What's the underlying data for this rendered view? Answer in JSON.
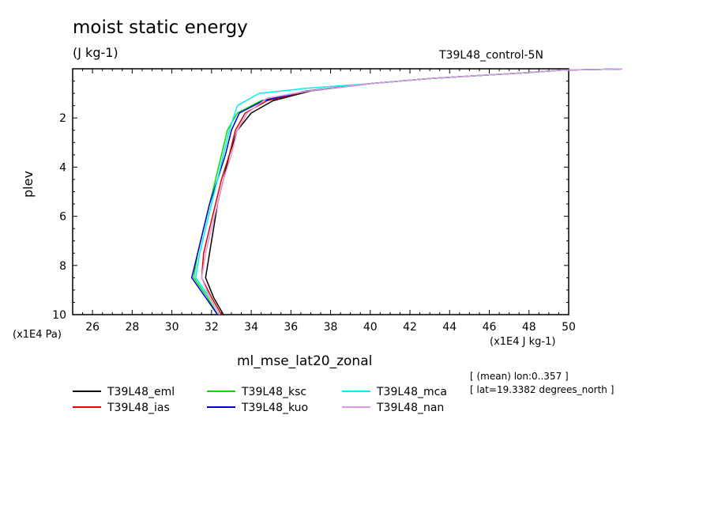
{
  "title": "moist static energy",
  "units": "(J kg-1)",
  "run_label": "T39L48_control-5N",
  "variable": "ml_mse_lat20_zonal",
  "info": [
    "[ (mean) lon:0..357 ]",
    "[ lat=19.3382 degrees_north ]"
  ],
  "chart_data": {
    "type": "line",
    "xlabel": "",
    "ylabel": "plev",
    "x_units": "(x1E4 J kg-1)",
    "y_units": "(x1E4 Pa)",
    "xlim": [
      25,
      50
    ],
    "ylim": [
      10,
      0
    ],
    "x_ticks": [
      "26",
      "28",
      "30",
      "32",
      "34",
      "36",
      "38",
      "40",
      "42",
      "44",
      "46",
      "48",
      "50"
    ],
    "y_ticks": [
      "2",
      "4",
      "6",
      "8",
      "10"
    ],
    "legend_position": "bottom",
    "series": [
      {
        "name": "T39L48_eml",
        "color": "#000000",
        "x": [
          32.6,
          32.1,
          31.7,
          31.9,
          32.1,
          32.3,
          32.6,
          32.9,
          33.3,
          34.0,
          35.1,
          37.0,
          40.0,
          43.0,
          46.0,
          48.0,
          49.7,
          52.7
        ],
        "y": [
          10,
          9.3,
          8.5,
          7.5,
          6.5,
          5.5,
          4.5,
          3.5,
          2.5,
          1.8,
          1.3,
          0.9,
          0.6,
          0.4,
          0.25,
          0.15,
          0.05,
          0.01
        ]
      },
      {
        "name": "T39L48_ias",
        "color": "#e00000",
        "x": [
          32.5,
          32.0,
          31.5,
          31.6,
          31.9,
          32.2,
          32.5,
          32.9,
          33.2,
          33.7,
          34.8,
          36.9,
          40.0,
          43.0,
          46.0,
          48.0,
          49.7,
          52.7
        ],
        "y": [
          10,
          9.3,
          8.5,
          7.5,
          6.5,
          5.5,
          4.5,
          3.5,
          2.5,
          1.8,
          1.3,
          0.9,
          0.6,
          0.4,
          0.25,
          0.15,
          0.05,
          0.01
        ]
      },
      {
        "name": "T39L48_ksc",
        "color": "#00dd00",
        "x": [
          32.3,
          31.8,
          31.1,
          31.3,
          31.6,
          31.9,
          32.2,
          32.5,
          32.8,
          33.3,
          34.5,
          36.8,
          40.0,
          43.0,
          46.0,
          48.0,
          49.7,
          52.7
        ],
        "y": [
          10,
          9.3,
          8.5,
          7.5,
          6.5,
          5.5,
          4.5,
          3.5,
          2.5,
          1.8,
          1.3,
          0.9,
          0.6,
          0.4,
          0.25,
          0.15,
          0.05,
          0.01
        ]
      },
      {
        "name": "T39L48_kuo",
        "color": "#0000cc",
        "x": [
          32.3,
          31.7,
          31.0,
          31.3,
          31.6,
          31.9,
          32.3,
          32.7,
          33.0,
          33.4,
          34.6,
          36.8,
          40.0,
          43.0,
          46.0,
          48.0,
          49.7,
          52.7
        ],
        "y": [
          10,
          9.3,
          8.5,
          7.5,
          6.5,
          5.5,
          4.5,
          3.5,
          2.5,
          1.8,
          1.3,
          0.9,
          0.6,
          0.4,
          0.25,
          0.15,
          0.05,
          0.01
        ]
      },
      {
        "name": "T39L48_mca",
        "color": "#00eeee",
        "x": [
          32.4,
          31.9,
          31.2,
          31.4,
          31.7,
          32.0,
          32.3,
          32.6,
          32.9,
          33.3,
          34.4,
          36.7,
          40.0,
          43.0,
          46.0,
          48.0,
          49.7,
          52.7
        ],
        "y": [
          10,
          9.3,
          8.5,
          7.5,
          6.5,
          5.5,
          4.5,
          3.5,
          2.5,
          1.5,
          1.0,
          0.8,
          0.6,
          0.4,
          0.25,
          0.15,
          0.05,
          0.01
        ]
      },
      {
        "name": "T39L48_nan",
        "color": "#dd99dd",
        "x": [
          32.4,
          31.9,
          31.5,
          31.7,
          32.0,
          32.3,
          32.6,
          33.0,
          33.3,
          33.8,
          34.8,
          36.9,
          40.0,
          43.0,
          46.0,
          48.0,
          49.7,
          52.7
        ],
        "y": [
          10,
          9.3,
          8.5,
          7.5,
          6.5,
          5.5,
          4.5,
          3.5,
          2.5,
          1.8,
          1.2,
          0.9,
          0.6,
          0.4,
          0.25,
          0.15,
          0.05,
          0.01
        ]
      }
    ]
  }
}
